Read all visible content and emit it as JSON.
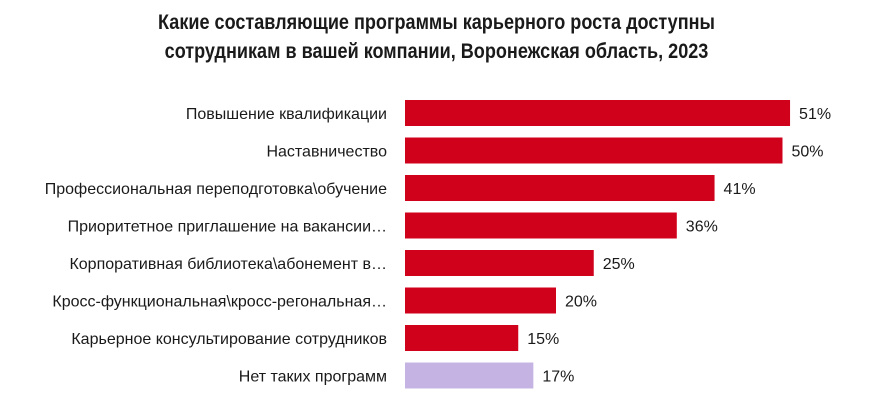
{
  "chart_data": {
    "type": "bar",
    "orientation": "horizontal",
    "title": [
      "Какие составляющие программы карьерного роста доступны",
      "сотрудникам в вашей компании, Воронежская область, 2023"
    ],
    "categories": [
      "Повышение квалификации",
      "Наставничество",
      "Профессиональная переподготовка\\обучение",
      "Приоритетное приглашение на вакансии…",
      "Корпоративная библиотека\\абонемент в…",
      "Кросс-функциональная\\кросс-регональная…",
      "Карьерное консультирование сотрудников",
      "Нет таких программ"
    ],
    "values": [
      51,
      50,
      41,
      36,
      25,
      20,
      15,
      17
    ],
    "value_labels": [
      "51%",
      "50%",
      "41%",
      "36%",
      "25%",
      "20%",
      "15%",
      "17%"
    ],
    "unit": "%",
    "bar_colors": [
      "#d0021b",
      "#d0021b",
      "#d0021b",
      "#d0021b",
      "#d0021b",
      "#d0021b",
      "#d0021b",
      "#c5b4e3"
    ],
    "grid": false,
    "legend": "none"
  }
}
